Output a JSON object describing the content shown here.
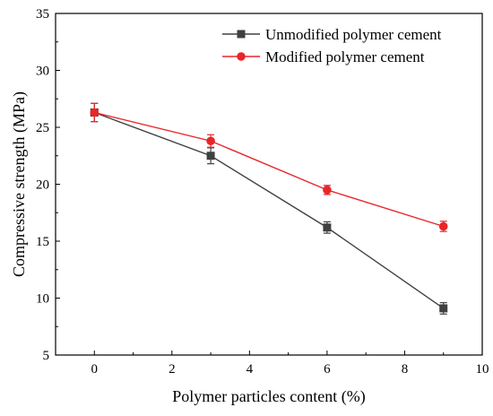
{
  "chart_data": {
    "type": "line",
    "x": [
      0,
      3,
      6,
      9
    ],
    "series": [
      {
        "name": "Unmodified polymer cement",
        "values": [
          26.3,
          22.5,
          16.2,
          9.1
        ],
        "errors": [
          0.8,
          0.7,
          0.5,
          0.5
        ],
        "color": "#404040",
        "marker": "square"
      },
      {
        "name": "Modified polymer cement",
        "values": [
          26.3,
          23.8,
          19.5,
          16.3
        ],
        "errors": [
          0.8,
          0.55,
          0.4,
          0.45
        ],
        "color": "#e8262a",
        "marker": "circle"
      }
    ],
    "xlabel": "Polymer particles content (%)",
    "ylabel": "Compressive strength (MPa)",
    "xlim": [
      -1,
      10
    ],
    "ylim": [
      5,
      35
    ],
    "xticks": [
      0,
      2,
      4,
      6,
      8,
      10
    ],
    "yticks": [
      5,
      10,
      15,
      20,
      25,
      30,
      35
    ],
    "legend_position": "top-right",
    "grid": false
  }
}
